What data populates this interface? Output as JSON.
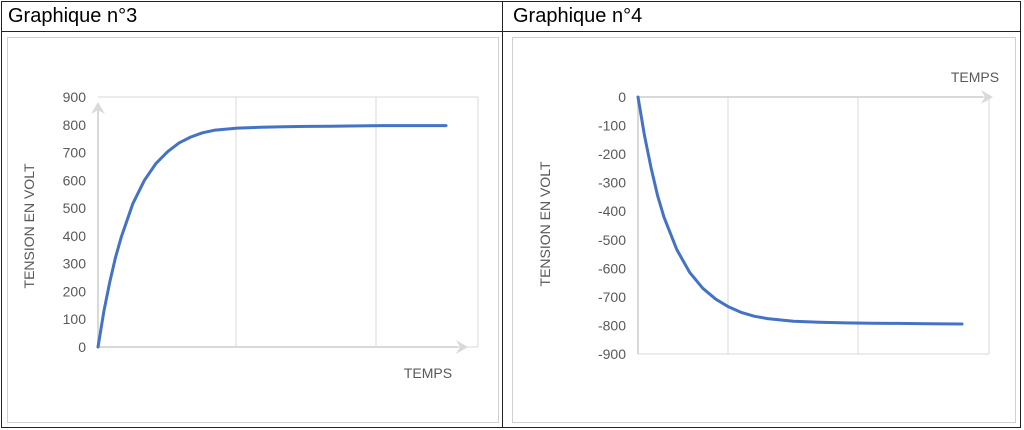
{
  "chart_data": [
    {
      "type": "line",
      "title": "Graphique n°3",
      "xlabel": "TEMPS",
      "ylabel": "TENSION EN VOLT",
      "ylim": [
        0,
        900
      ],
      "yticks": [
        "0",
        "100",
        "200",
        "300",
        "400",
        "500",
        "600",
        "700",
        "800",
        "900"
      ],
      "grid": true,
      "series": [
        {
          "color": "#4472c4",
          "x": [
            0,
            0.05,
            0.1,
            0.15,
            0.2,
            0.3,
            0.4,
            0.5,
            0.6,
            0.7,
            0.8,
            0.9,
            1.0,
            1.2,
            1.4,
            1.6,
            1.8,
            2.0,
            2.25,
            2.5,
            2.75,
            3.0
          ],
          "y": [
            0,
            127,
            231,
            321,
            395,
            516,
            600,
            661,
            703,
            735,
            756,
            771,
            780,
            788,
            791,
            793,
            794,
            795,
            796,
            797,
            797,
            797
          ]
        }
      ]
    },
    {
      "type": "line",
      "title": "Graphique n°4",
      "xlabel": "TEMPS",
      "ylabel": "TENSION EN VOLT",
      "ylim": [
        -900,
        0
      ],
      "yticks": [
        "0",
        "-100",
        "-200",
        "-300",
        "-400",
        "-500",
        "-600",
        "-700",
        "-800",
        "-900"
      ],
      "grid": true,
      "series": [
        {
          "color": "#4472c4",
          "x": [
            0,
            0.05,
            0.1,
            0.15,
            0.2,
            0.3,
            0.4,
            0.5,
            0.6,
            0.7,
            0.8,
            0.9,
            1.0,
            1.2,
            1.4,
            1.6,
            1.8,
            2.0,
            2.25,
            2.5
          ],
          "y": [
            0,
            -135,
            -247,
            -343,
            -420,
            -535,
            -615,
            -670,
            -708,
            -735,
            -755,
            -768,
            -776,
            -785,
            -789,
            -791,
            -792,
            -793,
            -794,
            -795
          ]
        }
      ]
    }
  ]
}
